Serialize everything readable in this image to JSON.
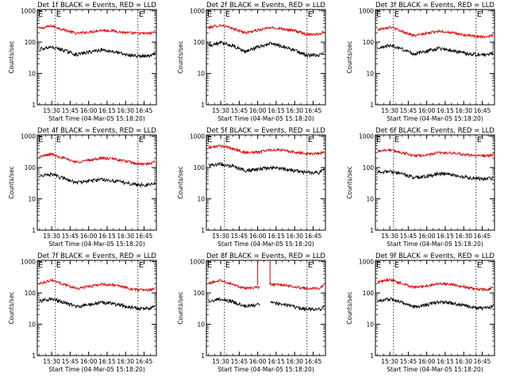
{
  "ylabel": "Counts/sec",
  "xlabel": "Start Time (04-Mar-05 15:18:20)",
  "x_ticks": [
    "15:30",
    "15:45",
    "16:00",
    "16:15",
    "16:30",
    "16:45"
  ],
  "y_ticks": [
    "1",
    "10",
    "100",
    "1000"
  ],
  "marker_labels": [
    "E",
    "E"
  ],
  "colors": {
    "events": "#000000",
    "lld": "#dd0000",
    "frame": "#000000",
    "background": "#ffffff"
  },
  "chart_data": [
    {
      "type": "line",
      "title": "Det 1f BLACK = Events, RED = LLD",
      "xlim": [
        "15:18:20",
        "16:55"
      ],
      "ylim": [
        1,
        1100
      ],
      "y_scale": "log",
      "markers": [
        "15:33",
        "16:40"
      ],
      "dropout": null,
      "spike": null,
      "series": [
        {
          "name": "LLD",
          "color": "#dd0000",
          "x": [
            "15:20",
            "15:30",
            "15:40",
            "15:50",
            "16:00",
            "16:10",
            "16:20",
            "16:30",
            "16:40",
            "16:50",
            "16:54"
          ],
          "y": [
            270,
            330,
            250,
            190,
            210,
            240,
            230,
            200,
            190,
            190,
            220
          ]
        },
        {
          "name": "Events",
          "color": "#000000",
          "x": [
            "15:20",
            "15:30",
            "15:40",
            "15:50",
            "16:00",
            "16:10",
            "16:20",
            "16:30",
            "16:40",
            "16:50",
            "16:54"
          ],
          "y": [
            60,
            70,
            55,
            40,
            48,
            58,
            50,
            40,
            36,
            36,
            42
          ]
        }
      ]
    },
    {
      "type": "line",
      "title": "Det 2f BLACK = Events, RED = LLD",
      "xlim": [
        "15:18:20",
        "16:55"
      ],
      "ylim": [
        1,
        1100
      ],
      "y_scale": "log",
      "markers": [
        "15:33",
        "16:40"
      ],
      "dropout": null,
      "spike": null,
      "series": [
        {
          "name": "LLD",
          "color": "#dd0000",
          "x": [
            "15:20",
            "15:30",
            "15:40",
            "15:50",
            "16:00",
            "16:10",
            "16:20",
            "16:30",
            "16:40",
            "16:50",
            "16:54"
          ],
          "y": [
            290,
            350,
            270,
            200,
            240,
            290,
            270,
            230,
            180,
            180,
            220
          ]
        },
        {
          "name": "Events",
          "color": "#000000",
          "x": [
            "15:20",
            "15:30",
            "15:40",
            "15:50",
            "16:00",
            "16:10",
            "16:20",
            "16:30",
            "16:40",
            "16:50",
            "16:54"
          ],
          "y": [
            80,
            95,
            75,
            50,
            70,
            90,
            75,
            55,
            38,
            38,
            45
          ]
        }
      ]
    },
    {
      "type": "line",
      "title": "Det 3f BLACK = Events, RED = LLD",
      "xlim": [
        "15:18:20",
        "16:55"
      ],
      "ylim": [
        1,
        1100
      ],
      "y_scale": "log",
      "markers": [
        "15:33",
        "16:40"
      ],
      "dropout": null,
      "spike": null,
      "series": [
        {
          "name": "LLD",
          "color": "#dd0000",
          "x": [
            "15:20",
            "15:30",
            "15:40",
            "15:50",
            "16:00",
            "16:10",
            "16:20",
            "16:30",
            "16:40",
            "16:50",
            "16:54"
          ],
          "y": [
            250,
            310,
            220,
            160,
            190,
            230,
            200,
            170,
            150,
            150,
            170
          ]
        },
        {
          "name": "Events",
          "color": "#000000",
          "x": [
            "15:20",
            "15:30",
            "15:40",
            "15:50",
            "16:00",
            "16:10",
            "16:20",
            "16:30",
            "16:40",
            "16:50",
            "16:54"
          ],
          "y": [
            65,
            80,
            60,
            42,
            52,
            65,
            55,
            45,
            40,
            40,
            45
          ]
        }
      ]
    },
    {
      "type": "line",
      "title": "Det 4f BLACK = Events, RED = LLD",
      "xlim": [
        "15:18:20",
        "16:55"
      ],
      "ylim": [
        1,
        1100
      ],
      "y_scale": "log",
      "markers": [
        "15:33",
        "16:40"
      ],
      "dropout": null,
      "spike": null,
      "series": [
        {
          "name": "LLD",
          "color": "#dd0000",
          "x": [
            "15:20",
            "15:30",
            "15:40",
            "15:50",
            "16:00",
            "16:10",
            "16:20",
            "16:30",
            "16:40",
            "16:50",
            "16:54"
          ],
          "y": [
            220,
            270,
            200,
            150,
            170,
            200,
            190,
            160,
            130,
            130,
            160
          ]
        },
        {
          "name": "Events",
          "color": "#000000",
          "x": [
            "15:20",
            "15:30",
            "15:40",
            "15:50",
            "16:00",
            "16:10",
            "16:20",
            "16:30",
            "16:40",
            "16:50",
            "16:54"
          ],
          "y": [
            55,
            60,
            45,
            33,
            37,
            42,
            38,
            33,
            28,
            28,
            32
          ]
        }
      ]
    },
    {
      "type": "line",
      "title": "Det 5f BLACK = Events, RED = LLD",
      "xlim": [
        "15:18:20",
        "16:55"
      ],
      "ylim": [
        1,
        1100
      ],
      "y_scale": "log",
      "markers": [
        "15:33",
        "16:40"
      ],
      "dropout": null,
      "spike": null,
      "series": [
        {
          "name": "LLD",
          "color": "#dd0000",
          "x": [
            "15:20",
            "15:30",
            "15:40",
            "15:50",
            "16:00",
            "16:10",
            "16:20",
            "16:30",
            "16:40",
            "16:50",
            "16:54"
          ],
          "y": [
            430,
            500,
            400,
            300,
            310,
            370,
            360,
            310,
            280,
            280,
            330
          ]
        },
        {
          "name": "Events",
          "color": "#000000",
          "x": [
            "15:20",
            "15:30",
            "15:40",
            "15:50",
            "16:00",
            "16:10",
            "16:20",
            "16:30",
            "16:40",
            "16:50",
            "16:54"
          ],
          "y": [
            120,
            130,
            110,
            80,
            88,
            100,
            92,
            80,
            70,
            70,
            85
          ]
        }
      ]
    },
    {
      "type": "line",
      "title": "Det 6f BLACK = Events, RED = LLD",
      "xlim": [
        "15:18:20",
        "16:55"
      ],
      "ylim": [
        1,
        1100
      ],
      "y_scale": "log",
      "markers": [
        "15:33",
        "16:40"
      ],
      "dropout": null,
      "spike": null,
      "series": [
        {
          "name": "LLD",
          "color": "#dd0000",
          "x": [
            "15:20",
            "15:30",
            "15:40",
            "15:50",
            "16:00",
            "16:10",
            "16:20",
            "16:30",
            "16:40",
            "16:50",
            "16:54"
          ],
          "y": [
            340,
            370,
            300,
            240,
            250,
            300,
            290,
            260,
            240,
            240,
            260
          ]
        },
        {
          "name": "Events",
          "color": "#000000",
          "x": [
            "15:20",
            "15:30",
            "15:40",
            "15:50",
            "16:00",
            "16:10",
            "16:20",
            "16:30",
            "16:40",
            "16:50",
            "16:54"
          ],
          "y": [
            70,
            75,
            62,
            48,
            52,
            65,
            58,
            50,
            44,
            44,
            46
          ]
        }
      ]
    },
    {
      "type": "line",
      "title": "Det 7f BLACK = Events, RED = LLD",
      "xlim": [
        "15:18:20",
        "16:55"
      ],
      "ylim": [
        1,
        1100
      ],
      "y_scale": "log",
      "markers": [
        "15:33",
        "16:40"
      ],
      "dropout": null,
      "spike": null,
      "series": [
        {
          "name": "LLD",
          "color": "#dd0000",
          "x": [
            "15:20",
            "15:30",
            "15:40",
            "15:50",
            "16:00",
            "16:10",
            "16:20",
            "16:30",
            "16:40",
            "16:50",
            "16:54"
          ],
          "y": [
            200,
            260,
            190,
            140,
            160,
            190,
            180,
            150,
            125,
            125,
            150
          ]
        },
        {
          "name": "Events",
          "color": "#000000",
          "x": [
            "15:20",
            "15:30",
            "15:40",
            "15:50",
            "16:00",
            "16:10",
            "16:20",
            "16:30",
            "16:40",
            "16:50",
            "16:54"
          ],
          "y": [
            55,
            65,
            50,
            36,
            42,
            50,
            45,
            38,
            32,
            32,
            38
          ]
        }
      ]
    },
    {
      "type": "line",
      "title": "Det 8f BLACK = Events, RED = LLD",
      "xlim": [
        "15:18:20",
        "16:55"
      ],
      "ylim": [
        1,
        1100
      ],
      "y_scale": "log",
      "markers": [
        "15:33",
        "16:40"
      ],
      "dropout": [
        "16:02",
        "16:10"
      ],
      "spike": [
        "16:00",
        "16:10",
        1000
      ],
      "series": [
        {
          "name": "LLD",
          "color": "#dd0000",
          "x": [
            "15:20",
            "15:30",
            "15:40",
            "15:50",
            "16:00",
            "16:10",
            "16:20",
            "16:30",
            "16:40",
            "16:50",
            "16:54"
          ],
          "y": [
            200,
            260,
            190,
            140,
            150,
            190,
            180,
            160,
            140,
            140,
            170
          ]
        },
        {
          "name": "Events",
          "color": "#000000",
          "x": [
            "15:20",
            "15:30",
            "15:40",
            "15:50",
            "16:00",
            "16:10",
            "16:20",
            "16:30",
            "16:40",
            "16:50",
            "16:54"
          ],
          "y": [
            55,
            65,
            52,
            38,
            42,
            50,
            44,
            36,
            30,
            30,
            36
          ]
        }
      ]
    },
    {
      "type": "line",
      "title": "Det 9f BLACK = Events, RED = LLD",
      "xlim": [
        "15:18:20",
        "16:55"
      ],
      "ylim": [
        1,
        1100
      ],
      "y_scale": "log",
      "markers": [
        "15:33",
        "16:40"
      ],
      "dropout": null,
      "spike": null,
      "series": [
        {
          "name": "LLD",
          "color": "#dd0000",
          "x": [
            "15:20",
            "15:30",
            "15:40",
            "15:50",
            "16:00",
            "16:10",
            "16:20",
            "16:30",
            "16:40",
            "16:50",
            "16:54"
          ],
          "y": [
            220,
            270,
            200,
            150,
            170,
            200,
            190,
            160,
            130,
            130,
            155
          ]
        },
        {
          "name": "Events",
          "color": "#000000",
          "x": [
            "15:20",
            "15:30",
            "15:40",
            "15:50",
            "16:00",
            "16:10",
            "16:20",
            "16:30",
            "16:40",
            "16:50",
            "16:54"
          ],
          "y": [
            55,
            65,
            50,
            36,
            42,
            52,
            48,
            40,
            33,
            33,
            40
          ]
        }
      ]
    }
  ]
}
